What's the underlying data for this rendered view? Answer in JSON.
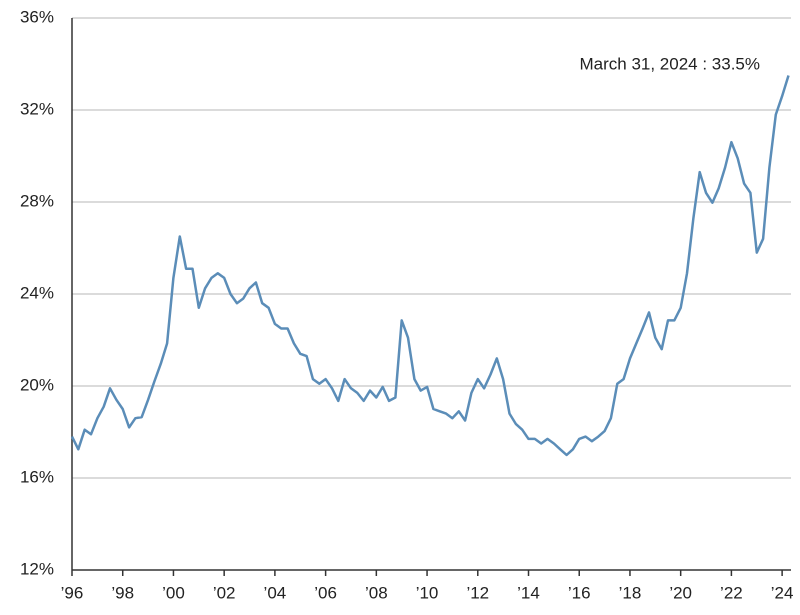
{
  "chart_data": {
    "type": "line",
    "annotation": "March 31, 2024 : 33.5%",
    "x": [
      1996.0,
      1996.25,
      1996.5,
      1996.75,
      1997.0,
      1997.25,
      1997.5,
      1997.75,
      1998.0,
      1998.25,
      1998.5,
      1998.75,
      1999.0,
      1999.25,
      1999.5,
      1999.75,
      2000.0,
      2000.25,
      2000.5,
      2000.75,
      2001.0,
      2001.25,
      2001.5,
      2001.75,
      2002.0,
      2002.25,
      2002.5,
      2002.75,
      2003.0,
      2003.25,
      2003.5,
      2003.75,
      2004.0,
      2004.25,
      2004.5,
      2004.75,
      2005.0,
      2005.25,
      2005.5,
      2005.75,
      2006.0,
      2006.25,
      2006.5,
      2006.75,
      2007.0,
      2007.25,
      2007.5,
      2007.75,
      2008.0,
      2008.25,
      2008.5,
      2008.75,
      2009.0,
      2009.25,
      2009.5,
      2009.75,
      2010.0,
      2010.25,
      2010.5,
      2010.75,
      2011.0,
      2011.25,
      2011.5,
      2011.75,
      2012.0,
      2012.25,
      2012.5,
      2012.75,
      2013.0,
      2013.25,
      2013.5,
      2013.75,
      2014.0,
      2014.25,
      2014.5,
      2014.75,
      2015.0,
      2015.25,
      2015.5,
      2015.75,
      2016.0,
      2016.25,
      2016.5,
      2016.75,
      2017.0,
      2017.25,
      2017.5,
      2017.75,
      2018.0,
      2018.25,
      2018.5,
      2018.75,
      2019.0,
      2019.25,
      2019.5,
      2019.75,
      2020.0,
      2020.25,
      2020.5,
      2020.75,
      2021.0,
      2021.25,
      2021.5,
      2021.75,
      2022.0,
      2022.25,
      2022.5,
      2022.75,
      2023.0,
      2023.25,
      2023.5,
      2023.75,
      2024.0,
      2024.25
    ],
    "series": [
      {
        "color": "#5b8db8",
        "values": [
          17.8,
          17.25,
          18.1,
          17.9,
          18.6,
          19.1,
          19.9,
          19.4,
          19.0,
          18.2,
          18.6,
          18.65,
          19.4,
          20.2,
          20.97,
          21.85,
          24.7,
          26.5,
          25.1,
          25.1,
          23.4,
          24.25,
          24.7,
          24.9,
          24.7,
          24.0,
          23.6,
          23.8,
          24.25,
          24.5,
          23.6,
          23.4,
          22.7,
          22.5,
          22.5,
          21.85,
          21.4,
          21.3,
          20.3,
          20.1,
          20.3,
          19.9,
          19.35,
          20.3,
          19.9,
          19.7,
          19.35,
          19.8,
          19.5,
          19.96,
          19.35,
          19.5,
          22.85,
          22.1,
          20.3,
          19.8,
          19.96,
          19.0,
          18.9,
          18.8,
          18.6,
          18.9,
          18.5,
          19.7,
          20.3,
          19.9,
          20.5,
          21.2,
          20.3,
          18.8,
          18.35,
          18.1,
          17.7,
          17.7,
          17.5,
          17.7,
          17.5,
          17.25,
          17.0,
          17.25,
          17.7,
          17.8,
          17.6,
          17.8,
          18.04,
          18.6,
          20.1,
          20.3,
          21.2,
          21.85,
          22.5,
          23.2,
          22.1,
          21.6,
          22.85,
          22.85,
          23.4,
          24.9,
          27.3,
          29.3,
          28.4,
          27.97,
          28.6,
          29.5,
          30.6,
          29.9,
          28.8,
          28.4,
          25.8,
          26.4,
          29.5,
          31.8,
          32.6,
          33.5
        ]
      }
    ],
    "xlim": [
      1996,
      2024.35
    ],
    "xticks": [
      {
        "value": 1996,
        "label": "’96"
      },
      {
        "value": 1998,
        "label": "’98"
      },
      {
        "value": 2000,
        "label": "’00"
      },
      {
        "value": 2002,
        "label": "’02"
      },
      {
        "value": 2004,
        "label": "’04"
      },
      {
        "value": 2006,
        "label": "’06"
      },
      {
        "value": 2008,
        "label": "’08"
      },
      {
        "value": 2010,
        "label": "’10"
      },
      {
        "value": 2012,
        "label": "’12"
      },
      {
        "value": 2014,
        "label": "’14"
      },
      {
        "value": 2016,
        "label": "’16"
      },
      {
        "value": 2018,
        "label": "’18"
      },
      {
        "value": 2020,
        "label": "’20"
      },
      {
        "value": 2022,
        "label": "’22"
      },
      {
        "value": 2024,
        "label": "’24"
      }
    ],
    "ylim": [
      12,
      36
    ],
    "yticks": [
      {
        "value": 12,
        "label": "12%"
      },
      {
        "value": 16,
        "label": "16%"
      },
      {
        "value": 20,
        "label": "20%"
      },
      {
        "value": 24,
        "label": "24%"
      },
      {
        "value": 28,
        "label": "28%"
      },
      {
        "value": 32,
        "label": "32%"
      },
      {
        "value": 36,
        "label": "36%"
      }
    ],
    "grid": true
  }
}
